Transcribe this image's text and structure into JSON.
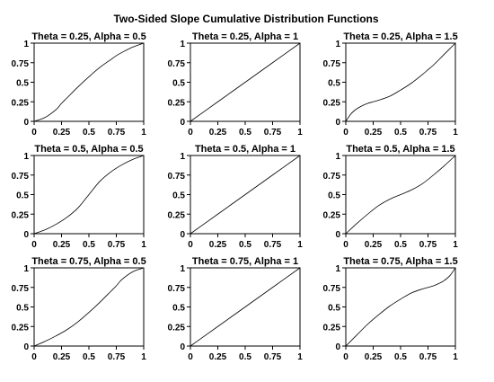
{
  "figure": {
    "title": "Two-Sided Slope Cumulative Distribution Functions"
  },
  "chart_data": [
    {
      "type": "line",
      "title": "Theta = 0.25, Alpha = 0.5",
      "theta": 0.25,
      "alpha": 0.5,
      "x": [
        0,
        0.1,
        0.2,
        0.25,
        0.3,
        0.4,
        0.5,
        0.6,
        0.7,
        0.75,
        0.8,
        0.9,
        1
      ],
      "y": [
        0,
        0.05,
        0.15,
        0.23,
        0.3,
        0.44,
        0.57,
        0.69,
        0.79,
        0.84,
        0.88,
        0.95,
        1
      ],
      "xlim": [
        0,
        1
      ],
      "ylim": [
        0,
        1
      ],
      "xticks": [
        "0",
        "0.25",
        "0.5",
        "0.75",
        "1"
      ],
      "yticks": [
        "0",
        "0.25",
        "0.5",
        "0.75",
        "1"
      ]
    },
    {
      "type": "line",
      "title": "Theta = 0.25, Alpha = 1",
      "theta": 0.25,
      "alpha": 1,
      "x": [
        0,
        0.25,
        0.5,
        0.75,
        1
      ],
      "y": [
        0,
        0.25,
        0.5,
        0.75,
        1
      ],
      "xlim": [
        0,
        1
      ],
      "ylim": [
        0,
        1
      ],
      "xticks": [
        "0",
        "0.25",
        "0.5",
        "0.75",
        "1"
      ],
      "yticks": [
        "0",
        "0.25",
        "0.5",
        "0.75",
        "1"
      ]
    },
    {
      "type": "line",
      "title": "Theta = 0.25, Alpha = 1.5",
      "theta": 0.25,
      "alpha": 1.5,
      "x": [
        0,
        0.05,
        0.1,
        0.15,
        0.2,
        0.25,
        0.3,
        0.4,
        0.5,
        0.6,
        0.7,
        0.75,
        0.8,
        0.9,
        1
      ],
      "y": [
        0,
        0.1,
        0.16,
        0.2,
        0.23,
        0.25,
        0.27,
        0.32,
        0.4,
        0.49,
        0.6,
        0.66,
        0.72,
        0.86,
        1
      ],
      "xlim": [
        0,
        1
      ],
      "ylim": [
        0,
        1
      ],
      "xticks": [
        "0",
        "0.25",
        "0.5",
        "0.75",
        "1"
      ],
      "yticks": [
        "0",
        "0.25",
        "0.5",
        "0.75",
        "1"
      ]
    },
    {
      "type": "line",
      "title": "Theta = 0.5, Alpha = 0.5",
      "theta": 0.5,
      "alpha": 0.5,
      "x": [
        0,
        0.1,
        0.2,
        0.3,
        0.4,
        0.5,
        0.6,
        0.7,
        0.8,
        0.9,
        1
      ],
      "y": [
        0,
        0.05,
        0.12,
        0.21,
        0.33,
        0.5,
        0.67,
        0.79,
        0.88,
        0.95,
        1
      ],
      "xlim": [
        0,
        1
      ],
      "ylim": [
        0,
        1
      ],
      "xticks": [
        "0",
        "0.25",
        "0.5",
        "0.75",
        "1"
      ],
      "yticks": [
        "0",
        "0.25",
        "0.5",
        "0.75",
        "1"
      ]
    },
    {
      "type": "line",
      "title": "Theta = 0.5, Alpha = 1",
      "theta": 0.5,
      "alpha": 1,
      "x": [
        0,
        0.25,
        0.5,
        0.75,
        1
      ],
      "y": [
        0,
        0.25,
        0.5,
        0.75,
        1
      ],
      "xlim": [
        0,
        1
      ],
      "ylim": [
        0,
        1
      ],
      "xticks": [
        "0",
        "0.25",
        "0.5",
        "0.75",
        "1"
      ],
      "yticks": [
        "0",
        "0.25",
        "0.5",
        "0.75",
        "1"
      ]
    },
    {
      "type": "line",
      "title": "Theta = 0.5, Alpha = 1.5",
      "theta": 0.5,
      "alpha": 1.5,
      "x": [
        0,
        0.1,
        0.2,
        0.3,
        0.4,
        0.5,
        0.6,
        0.7,
        0.8,
        0.9,
        1
      ],
      "y": [
        0,
        0.13,
        0.25,
        0.36,
        0.44,
        0.5,
        0.56,
        0.64,
        0.75,
        0.87,
        1
      ],
      "xlim": [
        0,
        1
      ],
      "ylim": [
        0,
        1
      ],
      "xticks": [
        "0",
        "0.25",
        "0.5",
        "0.75",
        "1"
      ],
      "yticks": [
        "0",
        "0.25",
        "0.5",
        "0.75",
        "1"
      ]
    },
    {
      "type": "line",
      "title": "Theta = 0.75, Alpha = 0.5",
      "theta": 0.75,
      "alpha": 0.5,
      "x": [
        0,
        0.1,
        0.2,
        0.3,
        0.4,
        0.5,
        0.6,
        0.7,
        0.75,
        0.8,
        0.9,
        1
      ],
      "y": [
        0,
        0.06,
        0.13,
        0.21,
        0.31,
        0.43,
        0.56,
        0.7,
        0.77,
        0.85,
        0.95,
        1
      ],
      "xlim": [
        0,
        1
      ],
      "ylim": [
        0,
        1
      ],
      "xticks": [
        "0",
        "0.25",
        "0.5",
        "0.75",
        "1"
      ],
      "yticks": [
        "0",
        "0.25",
        "0.5",
        "0.75",
        "1"
      ]
    },
    {
      "type": "line",
      "title": "Theta = 0.75, Alpha = 1",
      "theta": 0.75,
      "alpha": 1,
      "x": [
        0,
        0.25,
        0.5,
        0.75,
        1
      ],
      "y": [
        0,
        0.25,
        0.5,
        0.75,
        1
      ],
      "xlim": [
        0,
        1
      ],
      "ylim": [
        0,
        1
      ],
      "xticks": [
        "0",
        "0.25",
        "0.5",
        "0.75",
        "1"
      ],
      "yticks": [
        "0",
        "0.25",
        "0.5",
        "0.75",
        "1"
      ]
    },
    {
      "type": "line",
      "title": "Theta = 0.75, Alpha = 1.5",
      "theta": 0.75,
      "alpha": 1.5,
      "x": [
        0,
        0.1,
        0.2,
        0.3,
        0.4,
        0.5,
        0.6,
        0.7,
        0.75,
        0.8,
        0.85,
        0.9,
        0.95,
        1
      ],
      "y": [
        0,
        0.14,
        0.28,
        0.4,
        0.51,
        0.6,
        0.68,
        0.73,
        0.75,
        0.77,
        0.8,
        0.84,
        0.9,
        1
      ],
      "xlim": [
        0,
        1
      ],
      "ylim": [
        0,
        1
      ],
      "xticks": [
        "0",
        "0.25",
        "0.5",
        "0.75",
        "1"
      ],
      "yticks": [
        "0",
        "0.25",
        "0.5",
        "0.75",
        "1"
      ]
    }
  ]
}
